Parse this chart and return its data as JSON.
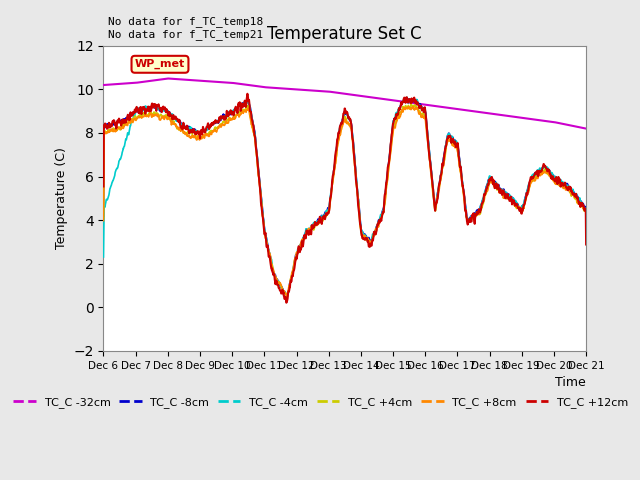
{
  "title": "Temperature Set C",
  "ylabel": "Temperature (C)",
  "xlabel": "Time",
  "text_top_left": "No data for f_TC_temp18\nNo data for f_TC_temp21",
  "wp_met_label": "WP_met",
  "xlim": [
    0,
    15
  ],
  "ylim": [
    -2,
    12
  ],
  "yticks": [
    -2,
    0,
    2,
    4,
    6,
    8,
    10,
    12
  ],
  "xtick_labels": [
    "Dec 6",
    "Dec 7",
    "Dec 8",
    "Dec 9",
    "Dec 10",
    "Dec 11",
    "Dec 12",
    "Dec 13",
    "Dec 14",
    "Dec 15",
    "Dec 16",
    "Dec 17",
    "Dec 18",
    "Dec 19",
    "Dec 20",
    "Dec 21"
  ],
  "legend_entries": [
    "TC_C -32cm",
    "TC_C -8cm",
    "TC_C -4cm",
    "TC_C +4cm",
    "TC_C +8cm",
    "TC_C +12cm"
  ],
  "line_colors": [
    "#cc00cc",
    "#0000cc",
    "#00cccc",
    "#cccc00",
    "#ff8800",
    "#cc0000"
  ],
  "line_widths": [
    1.5,
    1.2,
    1.2,
    1.2,
    1.2,
    1.5
  ],
  "background_color": "#e8e8e8",
  "plot_bg_color": "#ffffff",
  "grid_color": "#ffffff",
  "n_points": 1500
}
